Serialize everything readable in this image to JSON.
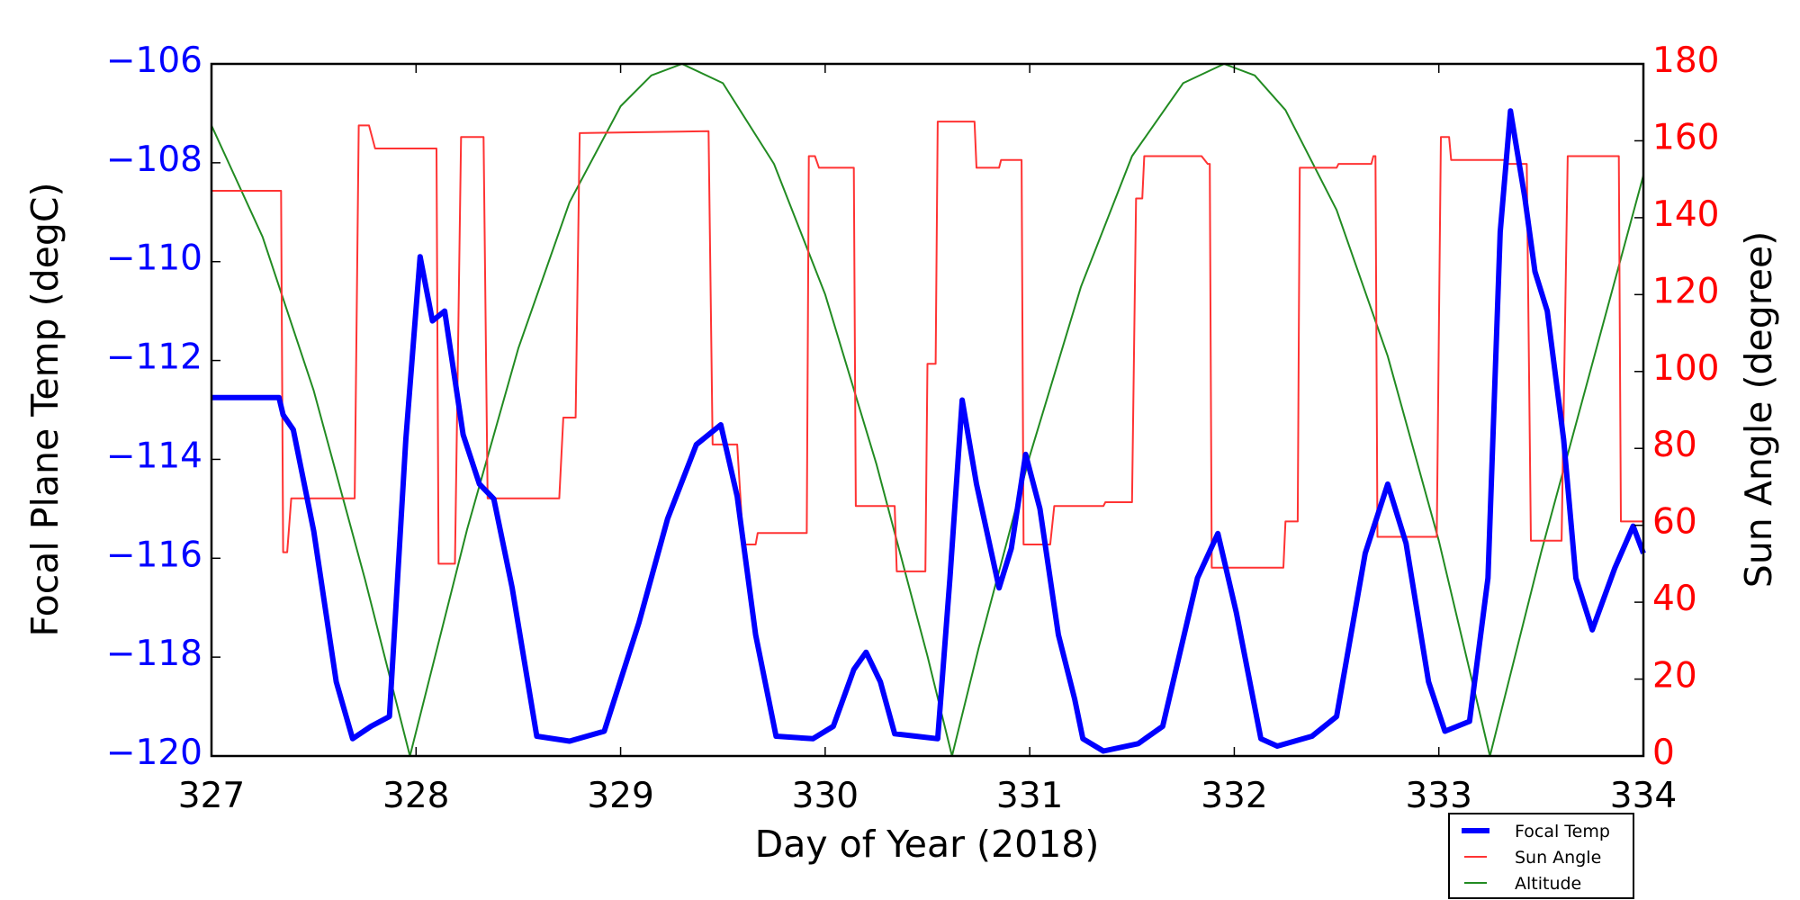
{
  "chart_data": {
    "type": "line",
    "xlabel": "Day of Year (2018)",
    "ylabel": "Focal Plane Temp (degC)",
    "y2label": "Sun Angle (degree)",
    "xlim": [
      327,
      334
    ],
    "ylim": [
      -120,
      -106
    ],
    "y2lim": [
      0,
      180
    ],
    "xticks": [
      "327",
      "328",
      "329",
      "330",
      "331",
      "332",
      "333",
      "334"
    ],
    "yticks": [
      "−106",
      "−108",
      "−110",
      "−112",
      "−114",
      "−116",
      "−118",
      "−120"
    ],
    "y2ticks": [
      "180",
      "160",
      "140",
      "120",
      "100",
      "80",
      "60",
      "40",
      "20",
      "0"
    ],
    "grid": false,
    "legend_position": "below-right",
    "colors": {
      "left_axis": "#0000ff",
      "right_axis": "#ff0000",
      "focal": "#0000ff",
      "sun": "#ff3333",
      "altitude": "#228b22"
    },
    "series": [
      {
        "name": "Focal Temp",
        "axis": "left",
        "points": [
          [
            327,
            -112.75
          ],
          [
            327.33,
            -112.75
          ],
          [
            327.35,
            -113.1
          ],
          [
            327.4,
            -113.4
          ],
          [
            327.5,
            -115.45
          ],
          [
            327.61,
            -118.5
          ],
          [
            327.69,
            -119.65
          ],
          [
            327.78,
            -119.4
          ],
          [
            327.87,
            -119.2
          ],
          [
            327.95,
            -113.6
          ],
          [
            328.02,
            -109.9
          ],
          [
            328.08,
            -111.2
          ],
          [
            328.14,
            -111.0
          ],
          [
            328.23,
            -113.5
          ],
          [
            328.31,
            -114.5
          ],
          [
            328.38,
            -114.8
          ],
          [
            328.47,
            -116.6
          ],
          [
            328.59,
            -119.6
          ],
          [
            328.75,
            -119.7
          ],
          [
            328.92,
            -119.5
          ],
          [
            329.09,
            -117.3
          ],
          [
            329.23,
            -115.2
          ],
          [
            329.37,
            -113.7
          ],
          [
            329.49,
            -113.3
          ],
          [
            329.57,
            -114.75
          ],
          [
            329.66,
            -117.55
          ],
          [
            329.76,
            -119.6
          ],
          [
            329.94,
            -119.65
          ],
          [
            330.04,
            -119.4
          ],
          [
            330.14,
            -118.25
          ],
          [
            330.2,
            -117.9
          ],
          [
            330.27,
            -118.5
          ],
          [
            330.34,
            -119.55
          ],
          [
            330.55,
            -119.65
          ],
          [
            330.61,
            -116.4
          ],
          [
            330.67,
            -112.8
          ],
          [
            330.74,
            -114.5
          ],
          [
            330.85,
            -116.6
          ],
          [
            330.91,
            -115.8
          ],
          [
            330.98,
            -113.9
          ],
          [
            331.05,
            -115.0
          ],
          [
            331.14,
            -117.55
          ],
          [
            331.22,
            -118.85
          ],
          [
            331.26,
            -119.65
          ],
          [
            331.36,
            -119.9
          ],
          [
            331.53,
            -119.75
          ],
          [
            331.65,
            -119.4
          ],
          [
            331.82,
            -116.4
          ],
          [
            331.92,
            -115.5
          ],
          [
            332.01,
            -117.1
          ],
          [
            332.13,
            -119.65
          ],
          [
            332.21,
            -119.8
          ],
          [
            332.38,
            -119.6
          ],
          [
            332.5,
            -119.2
          ],
          [
            332.64,
            -115.9
          ],
          [
            332.75,
            -114.5
          ],
          [
            332.84,
            -115.7
          ],
          [
            332.95,
            -118.5
          ],
          [
            333.03,
            -119.5
          ],
          [
            333.15,
            -119.3
          ],
          [
            333.24,
            -116.4
          ],
          [
            333.3,
            -109.4
          ],
          [
            333.35,
            -106.95
          ],
          [
            333.42,
            -108.7
          ],
          [
            333.47,
            -110.2
          ],
          [
            333.53,
            -111.0
          ],
          [
            333.61,
            -113.6
          ],
          [
            333.67,
            -116.4
          ],
          [
            333.75,
            -117.45
          ],
          [
            333.86,
            -116.2
          ],
          [
            333.95,
            -115.35
          ],
          [
            334,
            -115.9
          ]
        ]
      },
      {
        "name": "Sun Angle",
        "axis": "right",
        "step": true,
        "points": [
          [
            327,
            147
          ],
          [
            327.34,
            147
          ],
          [
            327.35,
            53
          ],
          [
            327.37,
            53
          ],
          [
            327.39,
            67
          ],
          [
            327.7,
            67
          ],
          [
            327.72,
            164
          ],
          [
            327.77,
            164
          ],
          [
            327.8,
            158
          ],
          [
            328.1,
            158
          ],
          [
            328.11,
            50
          ],
          [
            328.19,
            50
          ],
          [
            328.22,
            161
          ],
          [
            328.33,
            161
          ],
          [
            328.35,
            67
          ],
          [
            328.7,
            67
          ],
          [
            328.72,
            88
          ],
          [
            328.78,
            88
          ],
          [
            328.8,
            162
          ],
          [
            329.43,
            162.5
          ],
          [
            329.45,
            81
          ],
          [
            329.57,
            81
          ],
          [
            329.6,
            55
          ],
          [
            329.66,
            55
          ],
          [
            329.67,
            58
          ],
          [
            329.91,
            58
          ],
          [
            329.92,
            156
          ],
          [
            329.95,
            156
          ],
          [
            329.97,
            153
          ],
          [
            330.14,
            153
          ],
          [
            330.15,
            65
          ],
          [
            330.34,
            65
          ],
          [
            330.35,
            48
          ],
          [
            330.49,
            48
          ],
          [
            330.5,
            102
          ],
          [
            330.54,
            102
          ],
          [
            330.55,
            165
          ],
          [
            330.73,
            165
          ],
          [
            330.74,
            153
          ],
          [
            330.85,
            153
          ],
          [
            330.86,
            155
          ],
          [
            330.96,
            155
          ],
          [
            330.97,
            55
          ],
          [
            331.1,
            55
          ],
          [
            331.12,
            65
          ],
          [
            331.36,
            65
          ],
          [
            331.37,
            66
          ],
          [
            331.5,
            66
          ],
          [
            331.52,
            145
          ],
          [
            331.55,
            145
          ],
          [
            331.56,
            156
          ],
          [
            331.84,
            156
          ],
          [
            331.87,
            154
          ],
          [
            331.88,
            154
          ],
          [
            331.89,
            49
          ],
          [
            332.24,
            49
          ],
          [
            332.25,
            61
          ],
          [
            332.31,
            61
          ],
          [
            332.32,
            153
          ],
          [
            332.5,
            153
          ],
          [
            332.51,
            154
          ],
          [
            332.67,
            154
          ],
          [
            332.68,
            156
          ],
          [
            332.69,
            156
          ],
          [
            332.7,
            57
          ],
          [
            332.99,
            57
          ],
          [
            333.01,
            161
          ],
          [
            333.05,
            161
          ],
          [
            333.06,
            155
          ],
          [
            333.32,
            155
          ],
          [
            333.33,
            154
          ],
          [
            333.43,
            154
          ],
          [
            333.45,
            56
          ],
          [
            333.6,
            56
          ],
          [
            333.63,
            156
          ],
          [
            333.88,
            156
          ],
          [
            333.89,
            61
          ],
          [
            334,
            61
          ]
        ]
      },
      {
        "name": "Altitude",
        "axis": "right",
        "points": [
          [
            327,
            164
          ],
          [
            327.25,
            135
          ],
          [
            327.5,
            95
          ],
          [
            327.75,
            46
          ],
          [
            327.97,
            0
          ],
          [
            328.25,
            59
          ],
          [
            328.5,
            106
          ],
          [
            328.75,
            144
          ],
          [
            329.0,
            169
          ],
          [
            329.15,
            177
          ],
          [
            329.3,
            180
          ],
          [
            329.5,
            175
          ],
          [
            329.75,
            154
          ],
          [
            330.0,
            120
          ],
          [
            330.25,
            76
          ],
          [
            330.5,
            26
          ],
          [
            330.62,
            0
          ],
          [
            330.75,
            28
          ],
          [
            331.0,
            78
          ],
          [
            331.25,
            122
          ],
          [
            331.5,
            156
          ],
          [
            331.75,
            175
          ],
          [
            331.95,
            180
          ],
          [
            332.1,
            177
          ],
          [
            332.25,
            168
          ],
          [
            332.5,
            142
          ],
          [
            332.75,
            104
          ],
          [
            333.0,
            56
          ],
          [
            333.25,
            0
          ],
          [
            333.5,
            53
          ],
          [
            333.75,
            102
          ],
          [
            334,
            151
          ]
        ]
      }
    ]
  }
}
